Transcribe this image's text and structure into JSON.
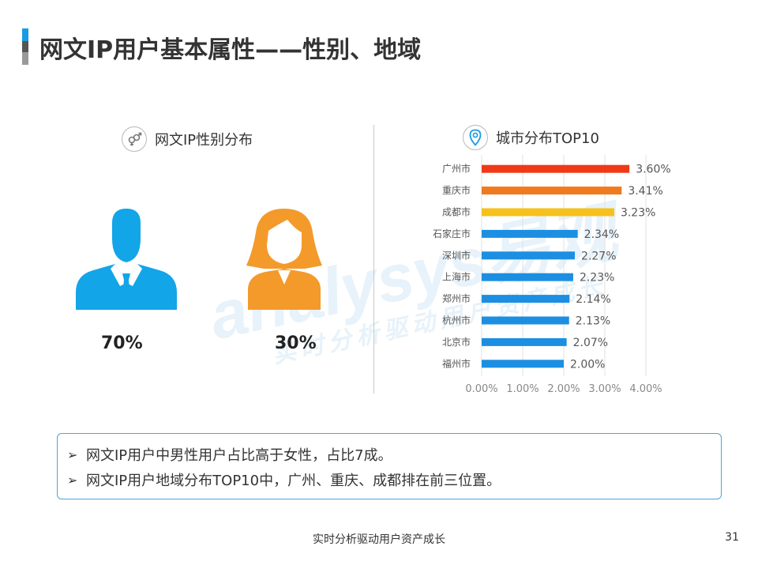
{
  "page_title": "网文IP用户基本属性——性别、地域",
  "gender_section": {
    "title": "网文IP性别分布",
    "male_pct": "70%",
    "female_pct": "30%",
    "male_color": "#12a5e8",
    "female_color": "#f39a2b"
  },
  "city_section": {
    "title": "城市分布TOP10"
  },
  "chart_data": {
    "type": "bar",
    "orientation": "horizontal",
    "categories": [
      "广州市",
      "重庆市",
      "成都市",
      "石家庄市",
      "深圳市",
      "上海市",
      "郑州市",
      "杭州市",
      "北京市",
      "福州市"
    ],
    "values": [
      3.6,
      3.41,
      3.23,
      2.34,
      2.27,
      2.23,
      2.14,
      2.13,
      2.07,
      2.0
    ],
    "value_labels": [
      "3.60%",
      "3.41%",
      "3.23%",
      "2.34%",
      "2.27%",
      "2.23%",
      "2.14%",
      "2.13%",
      "2.07%",
      "2.00%"
    ],
    "bar_colors": [
      "#f03a17",
      "#f07a1e",
      "#f6c11c",
      "#1c8fe2",
      "#1c8fe2",
      "#1c8fe2",
      "#1c8fe2",
      "#1c8fe2",
      "#1c8fe2",
      "#1c8fe2"
    ],
    "xlim": [
      0,
      4
    ],
    "xticks": [
      0,
      1,
      2,
      3,
      4
    ],
    "xtick_labels": [
      "0.00%",
      "1.00%",
      "2.00%",
      "3.00%",
      "4.00%"
    ],
    "grid": true
  },
  "summary": {
    "items": [
      "网文IP用户中男性用户占比高于女性，占比7成。",
      "网文IP用户地域分布TOP10中，广州、重庆、成都排在前三位置。"
    ]
  },
  "watermark": {
    "brand": "analysys易观",
    "tagline": "实时分析驱动用户资产成长"
  },
  "footer": {
    "text": "实时分析驱动用户资产成长",
    "page_number": "31"
  }
}
